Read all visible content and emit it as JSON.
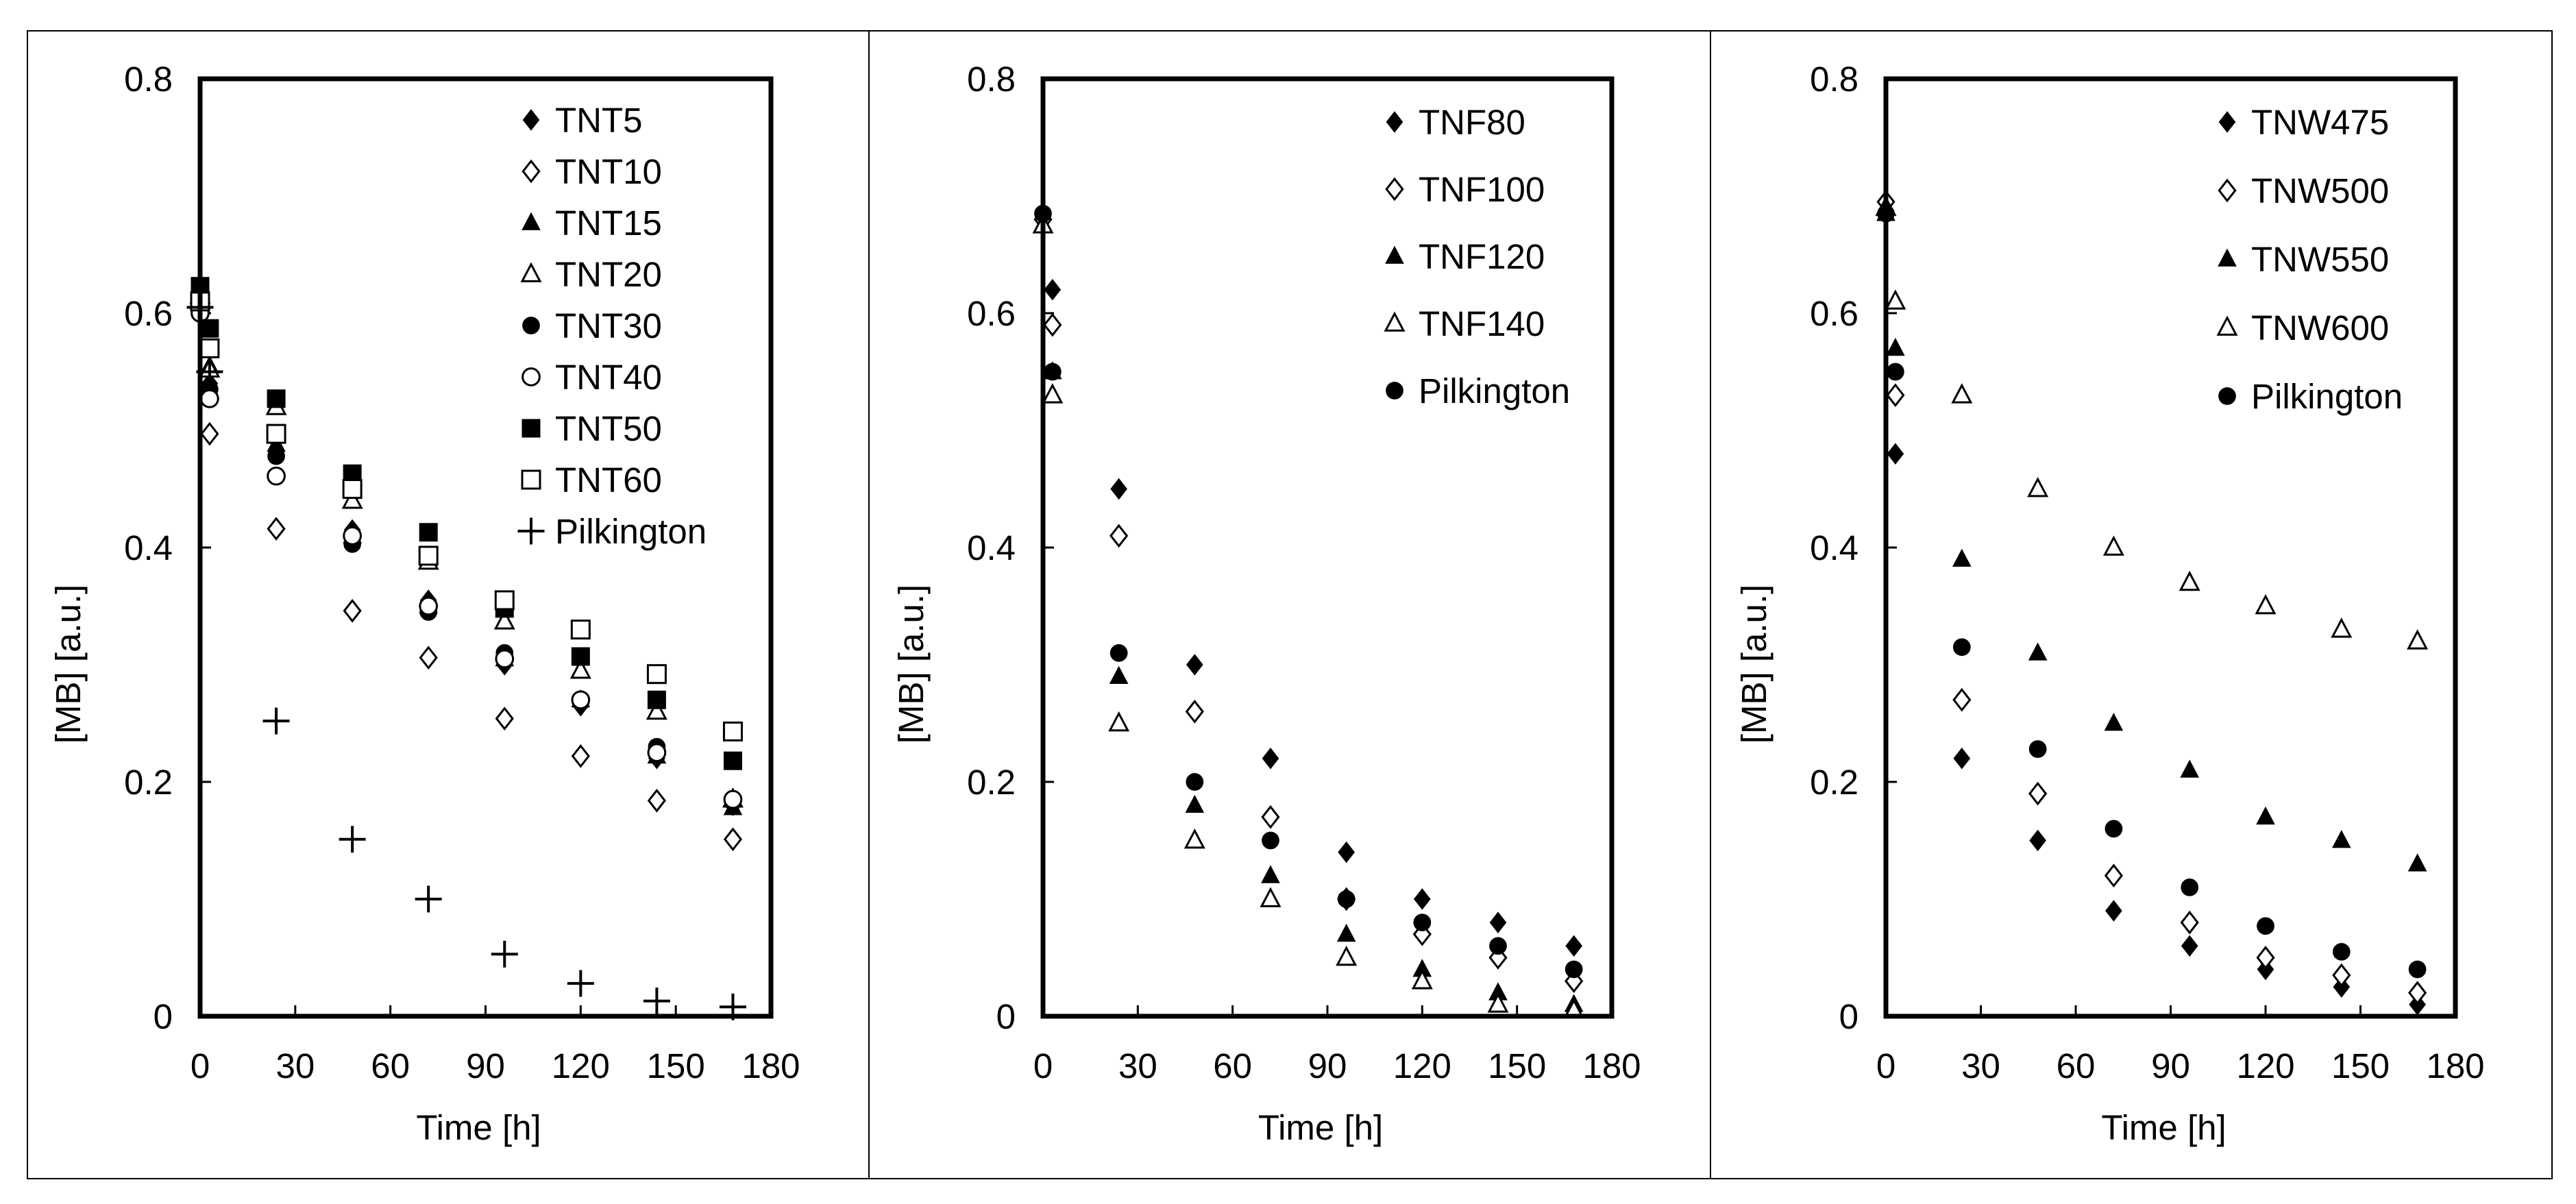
{
  "chart_data": [
    {
      "type": "scatter",
      "xlabel": "Time [h]",
      "ylabel": "[MB] [a.u.]",
      "xlim": [
        0,
        180
      ],
      "ylim": [
        0,
        0.8
      ],
      "xticks": [
        "0",
        "30",
        "60",
        "90",
        "120",
        "150",
        "180"
      ],
      "yticks": [
        "0",
        "0.2",
        "0.4",
        "0.6",
        "0.8"
      ],
      "legend_position": "top-right",
      "x": [
        0,
        3,
        24,
        48,
        72,
        96,
        120,
        144,
        168
      ],
      "series": [
        {
          "name": "TNT5",
          "marker": "diamond-filled",
          "values": [
            0.61,
            0.54,
            0.48,
            0.415,
            0.355,
            0.3,
            0.265,
            0.22,
            0.18
          ]
        },
        {
          "name": "TNT10",
          "marker": "diamond-open",
          "values": [
            0.61,
            0.497,
            0.416,
            0.346,
            0.306,
            0.254,
            0.222,
            0.184,
            0.151
          ]
        },
        {
          "name": "TNT15",
          "marker": "triangle-filled",
          "values": [
            0.615,
            0.555,
            0.488,
            0.41,
            0.35,
            0.305,
            0.27,
            0.222,
            0.178
          ]
        },
        {
          "name": "TNT20",
          "marker": "triangle-open",
          "values": [
            0.615,
            0.552,
            0.52,
            0.44,
            0.388,
            0.337,
            0.295,
            0.26,
            0.185
          ]
        },
        {
          "name": "TNT30",
          "marker": "circle-filled",
          "values": [
            0.6,
            0.535,
            0.478,
            0.403,
            0.345,
            0.31,
            0.268,
            0.23,
            0.185
          ]
        },
        {
          "name": "TNT40",
          "marker": "circle-open",
          "values": [
            0.6,
            0.527,
            0.461,
            0.41,
            0.35,
            0.305,
            0.27,
            0.225,
            0.185
          ]
        },
        {
          "name": "TNT50",
          "marker": "square-filled",
          "values": [
            0.623,
            0.587,
            0.527,
            0.463,
            0.413,
            0.348,
            0.307,
            0.27,
            0.218
          ]
        },
        {
          "name": "TNT60",
          "marker": "square-open",
          "values": [
            0.61,
            0.57,
            0.497,
            0.45,
            0.393,
            0.355,
            0.33,
            0.292,
            0.243
          ]
        },
        {
          "name": "Pilkington",
          "marker": "plus",
          "values": [
            0.605,
            0.55,
            0.252,
            0.151,
            0.1,
            0.053,
            0.028,
            0.013,
            0.008
          ]
        }
      ]
    },
    {
      "type": "scatter",
      "xlabel": "Time [h]",
      "ylabel": "[MB] [a.u.]",
      "xlim": [
        0,
        180
      ],
      "ylim": [
        0,
        0.8
      ],
      "xticks": [
        "0",
        "30",
        "60",
        "90",
        "120",
        "150",
        "180"
      ],
      "yticks": [
        "0",
        "0.2",
        "0.4",
        "0.6",
        "0.8"
      ],
      "legend_position": "top-right",
      "x": [
        0,
        3,
        24,
        48,
        72,
        96,
        120,
        144,
        168
      ],
      "series": [
        {
          "name": "TNF80",
          "marker": "diamond-filled",
          "values": [
            0.685,
            0.62,
            0.45,
            0.3,
            0.22,
            0.14,
            0.1,
            0.08,
            0.06
          ]
        },
        {
          "name": "TNF100",
          "marker": "diamond-open",
          "values": [
            0.68,
            0.59,
            0.41,
            0.26,
            0.17,
            0.1,
            0.07,
            0.05,
            0.03
          ]
        },
        {
          "name": "TNF120",
          "marker": "triangle-filled",
          "values": [
            0.675,
            0.55,
            0.29,
            0.18,
            0.12,
            0.07,
            0.04,
            0.02,
            0.01
          ]
        },
        {
          "name": "TNF140",
          "marker": "triangle-open",
          "values": [
            0.675,
            0.53,
            0.25,
            0.15,
            0.1,
            0.05,
            0.03,
            0.01,
            0.005
          ]
        },
        {
          "name": "Pilkington",
          "marker": "circle-filled",
          "values": [
            0.685,
            0.55,
            0.31,
            0.2,
            0.15,
            0.1,
            0.08,
            0.06,
            0.04
          ]
        }
      ]
    },
    {
      "type": "scatter",
      "xlabel": "Time [h]",
      "ylabel": "[MB] [a.u.]",
      "xlim": [
        0,
        180
      ],
      "ylim": [
        0,
        0.8
      ],
      "xticks": [
        "0",
        "30",
        "60",
        "90",
        "120",
        "150",
        "180"
      ],
      "yticks": [
        "0",
        "0.2",
        "0.4",
        "0.6",
        "0.8"
      ],
      "legend_position": "top-right",
      "x": [
        0,
        3,
        24,
        48,
        72,
        96,
        120,
        144,
        168
      ],
      "series": [
        {
          "name": "TNW475",
          "marker": "diamond-filled",
          "values": [
            0.685,
            0.48,
            0.22,
            0.15,
            0.09,
            0.06,
            0.04,
            0.025,
            0.01
          ]
        },
        {
          "name": "TNW500",
          "marker": "diamond-open",
          "values": [
            0.695,
            0.53,
            0.27,
            0.19,
            0.12,
            0.08,
            0.05,
            0.035,
            0.02
          ]
        },
        {
          "name": "TNW550",
          "marker": "triangle-filled",
          "values": [
            0.685,
            0.57,
            0.39,
            0.31,
            0.25,
            0.21,
            0.17,
            0.15,
            0.13
          ]
        },
        {
          "name": "TNW600",
          "marker": "triangle-open",
          "values": [
            0.69,
            0.61,
            0.53,
            0.45,
            0.4,
            0.37,
            0.35,
            0.33,
            0.32
          ]
        },
        {
          "name": "Pilkington",
          "marker": "circle-filled",
          "values": [
            0.685,
            0.55,
            0.315,
            0.228,
            0.16,
            0.11,
            0.077,
            0.055,
            0.04
          ]
        }
      ]
    }
  ]
}
